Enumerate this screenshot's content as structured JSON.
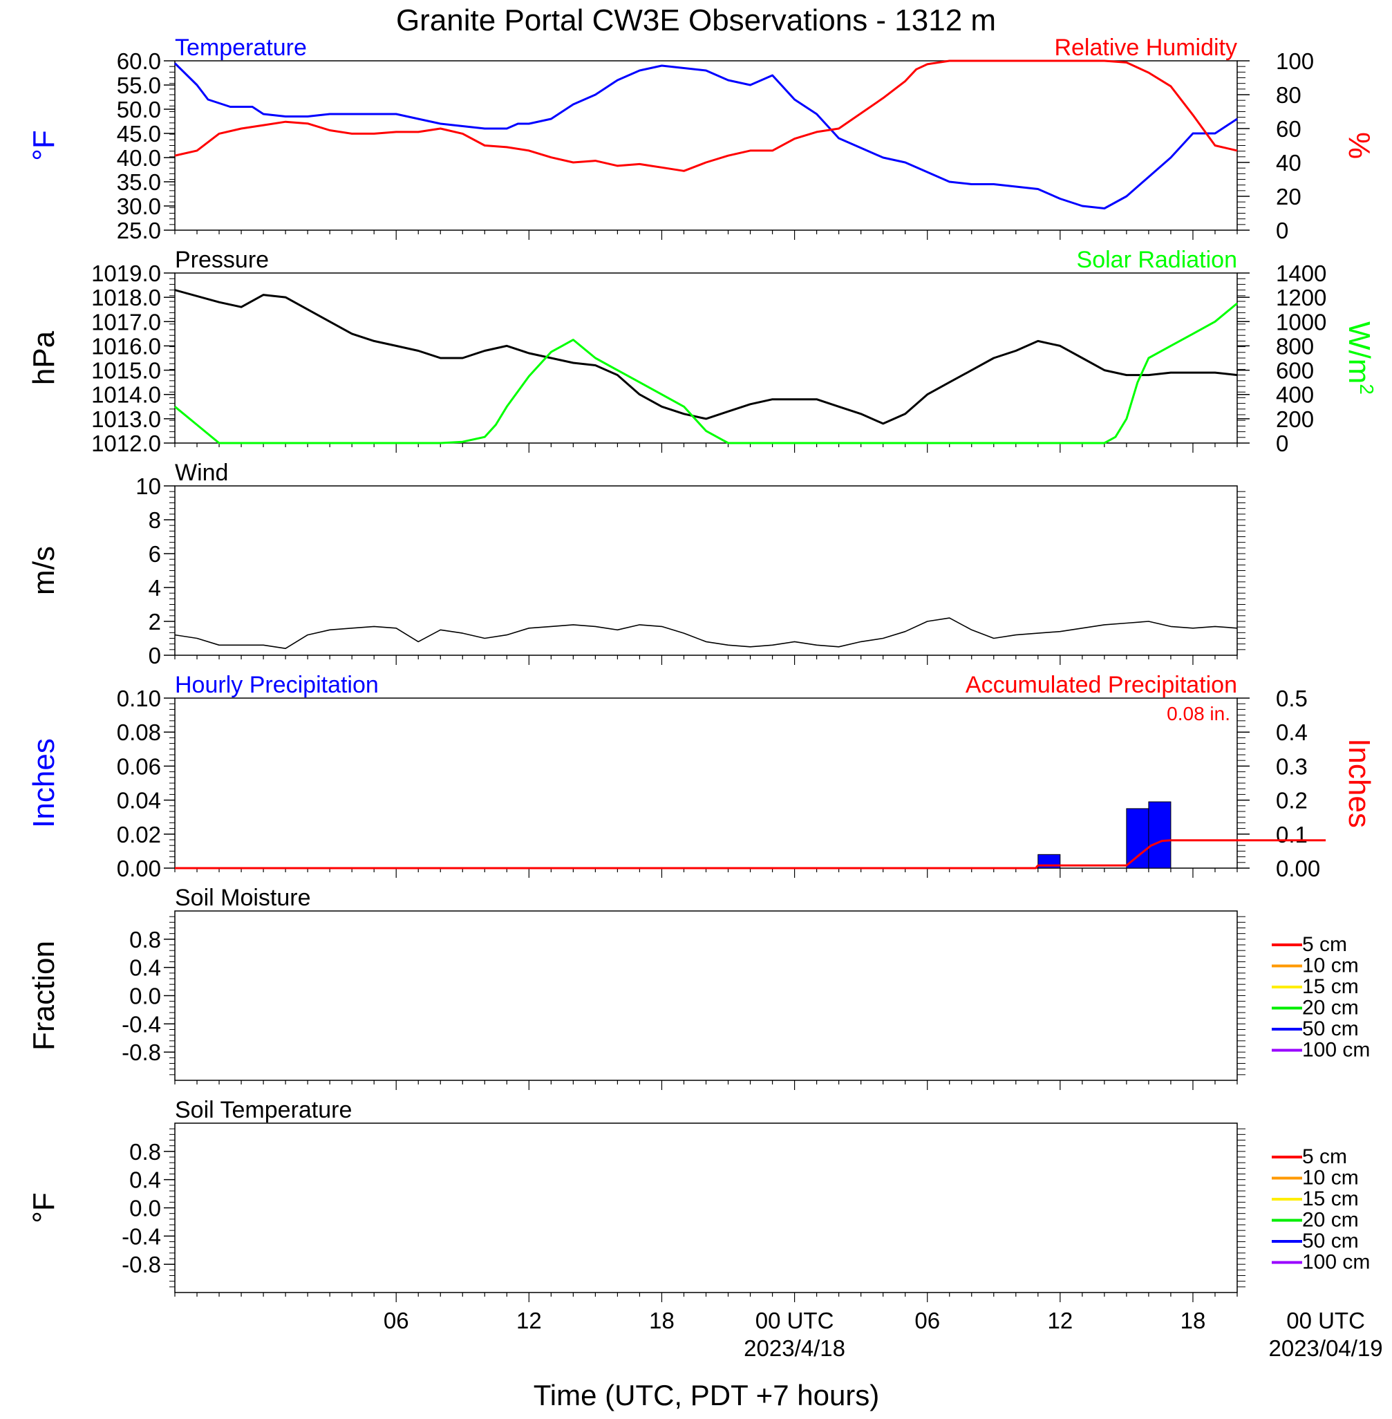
{
  "title": "Granite Portal CW3E Observations - 1312 m",
  "x_axis": {
    "label": "Time (UTC, PDT +7 hours)",
    "range_hours": [
      -5,
      43
    ],
    "ticks": [
      {
        "hour": 5,
        "label": "06"
      },
      {
        "hour": 11,
        "label": "12"
      },
      {
        "hour": 17,
        "label": "18"
      },
      {
        "hour": 23,
        "label": "00 UTC",
        "date": "2023/4/18"
      },
      {
        "hour": 29,
        "label": "06"
      },
      {
        "hour": 35,
        "label": "12"
      },
      {
        "hour": 41,
        "label": "18"
      },
      {
        "hour": 47,
        "label": "00 UTC",
        "date": "2023/04/19"
      }
    ]
  },
  "colors": {
    "temperature": "#0000ff",
    "humidity": "#ff0000",
    "pressure": "#000000",
    "solar": "#00ff00",
    "wind": "#000000",
    "wind_barb": "#ff0000",
    "hourly_precip": "#0000ff",
    "accum_precip": "#ff0000"
  },
  "chart_data": [
    {
      "type": "line",
      "panel": "temperature_humidity",
      "left_title": "Temperature",
      "right_title": "Relative Humidity",
      "ylabel_left": "°F",
      "ylabel_right": "%",
      "ylim_left": [
        25,
        60
      ],
      "ylim_right": [
        0,
        100
      ],
      "yticks_left": [
        "60.0",
        "55.0",
        "50.0",
        "45.0",
        "40.0",
        "35.0",
        "30.0",
        "25.0"
      ],
      "yticks_right": [
        "100",
        "80",
        "60",
        "40",
        "20",
        "0"
      ],
      "series": [
        {
          "name": "Temperature",
          "axis": "left",
          "x": [
            -5,
            -4,
            -3.5,
            -2.5,
            -1.5,
            -1,
            0,
            1,
            2,
            3,
            4,
            5,
            5.5,
            6,
            7,
            8,
            9,
            10,
            10.5,
            11,
            12,
            13,
            14,
            15,
            16,
            17,
            18,
            19,
            20,
            21,
            22,
            23,
            24,
            25,
            26,
            27,
            28,
            29,
            30,
            31,
            32,
            33,
            34,
            35,
            36,
            37,
            38,
            39,
            40,
            41,
            42,
            43
          ],
          "y": [
            59.5,
            55,
            52,
            50.5,
            50.5,
            49,
            48.5,
            48.5,
            49,
            49,
            49,
            49,
            48.5,
            48,
            47,
            46.5,
            46,
            46,
            47,
            47,
            48,
            51,
            53,
            56,
            58,
            59,
            58.5,
            58,
            56,
            55,
            57,
            52,
            49,
            44,
            42,
            40,
            39,
            37,
            35,
            34.5,
            34.5,
            34,
            33.5,
            31.5,
            30,
            29.5,
            32,
            36,
            40,
            45,
            45,
            48
          ]
        },
        {
          "name": "Relative Humidity",
          "axis": "right",
          "x": [
            -5,
            -4,
            -3,
            -2,
            -1,
            0,
            1,
            2,
            3,
            4,
            5,
            6,
            7,
            8,
            9,
            10,
            11,
            12,
            13,
            14,
            15,
            16,
            16.5,
            17,
            18,
            19,
            20,
            21,
            22,
            23,
            24,
            25,
            26,
            27,
            28,
            28.5,
            29,
            30,
            31,
            32,
            33,
            34,
            35,
            36,
            37,
            38,
            39,
            40,
            41,
            42,
            43
          ],
          "y": [
            44,
            47,
            57,
            60,
            62,
            64,
            63,
            59,
            57,
            57,
            58,
            58,
            60,
            57,
            50,
            49,
            47,
            43,
            40,
            41,
            38,
            39,
            38,
            37,
            35,
            40,
            44,
            47,
            47,
            54,
            58,
            60,
            69,
            78,
            88,
            95,
            98,
            100,
            100,
            100,
            100,
            100,
            100,
            100,
            100,
            99,
            93,
            85,
            68,
            50,
            47
          ]
        }
      ]
    },
    {
      "type": "line",
      "panel": "pressure_solar",
      "left_title": "Pressure",
      "right_title": "Solar Radiation",
      "ylabel_left": "hPa",
      "ylabel_right": "W/m",
      "ylabel_right_sup": "2",
      "ylim_left": [
        1012,
        1019
      ],
      "ylim_right": [
        0,
        1400
      ],
      "yticks_left": [
        "1019.0",
        "1018.0",
        "1017.0",
        "1016.0",
        "1015.0",
        "1014.0",
        "1013.0",
        "1012.0"
      ],
      "yticks_right": [
        "1400",
        "1200",
        "1000",
        "800",
        "600",
        "400",
        "200",
        "0"
      ],
      "series": [
        {
          "name": "Pressure",
          "axis": "left",
          "x": [
            -5,
            -3,
            -2,
            -1,
            0,
            1,
            2,
            3,
            4,
            5,
            6,
            7,
            8,
            9,
            10,
            11,
            12,
            13,
            14,
            15,
            16,
            17,
            18,
            19,
            20,
            21,
            22,
            23,
            24,
            25,
            26,
            27,
            28,
            29,
            30,
            31,
            32,
            33,
            34,
            35,
            36,
            37,
            38,
            39,
            40,
            41,
            42,
            43
          ],
          "y": [
            1018.3,
            1017.8,
            1017.6,
            1018.1,
            1018.0,
            1017.5,
            1017.0,
            1016.5,
            1016.2,
            1016.0,
            1015.8,
            1015.5,
            1015.5,
            1015.8,
            1016.0,
            1015.7,
            1015.5,
            1015.3,
            1015.2,
            1014.8,
            1014.0,
            1013.5,
            1013.2,
            1013.0,
            1013.3,
            1013.6,
            1013.8,
            1013.8,
            1013.8,
            1013.5,
            1013.2,
            1012.8,
            1013.2,
            1014.0,
            1014.5,
            1015.0,
            1015.5,
            1015.8,
            1016.2,
            1016.0,
            1015.5,
            1015.0,
            1014.8,
            1014.8,
            1014.9,
            1014.9,
            1014.9,
            1014.8
          ]
        },
        {
          "name": "Solar Radiation",
          "axis": "right",
          "x": [
            -5,
            -4,
            -3,
            -2,
            0,
            2,
            4,
            6,
            7,
            8,
            9,
            9.5,
            10,
            11,
            12,
            12.5,
            13,
            14,
            15,
            16,
            17,
            18,
            19,
            20,
            21,
            22,
            23,
            24,
            25,
            26,
            28,
            30,
            32,
            34,
            36,
            37,
            37.5,
            38,
            38.5,
            39,
            40,
            41,
            42,
            43
          ],
          "y": [
            300,
            150,
            0,
            0,
            0,
            0,
            0,
            0,
            0,
            10,
            50,
            150,
            300,
            550,
            750,
            800,
            850,
            700,
            600,
            500,
            400,
            300,
            100,
            0,
            0,
            0,
            0,
            0,
            0,
            0,
            0,
            0,
            0,
            0,
            0,
            0,
            50,
            200,
            500,
            700,
            800,
            900,
            1000,
            1150
          ]
        }
      ]
    },
    {
      "type": "line",
      "panel": "wind",
      "left_title": "Wind",
      "ylabel_left": "m/s",
      "ylim_left": [
        0,
        10
      ],
      "yticks_left": [
        "10",
        "8",
        "6",
        "4",
        "2",
        "0"
      ],
      "series": [
        {
          "name": "Wind",
          "axis": "left",
          "x": [
            -5,
            -4,
            -3,
            -2,
            -1,
            0,
            1,
            2,
            3,
            4,
            5,
            6,
            7,
            8,
            9,
            10,
            11,
            12,
            13,
            14,
            15,
            16,
            17,
            18,
            19,
            20,
            21,
            22,
            23,
            24,
            25,
            26,
            27,
            28,
            29,
            30,
            31,
            32,
            33,
            34,
            35,
            36,
            37,
            38,
            39,
            40,
            41,
            42,
            43
          ],
          "y": [
            1.2,
            1.0,
            0.6,
            0.6,
            0.6,
            0.4,
            1.2,
            1.5,
            1.6,
            1.7,
            1.6,
            0.8,
            1.5,
            1.3,
            1.0,
            1.2,
            1.6,
            1.7,
            1.8,
            1.7,
            1.5,
            1.8,
            1.7,
            1.3,
            0.8,
            0.6,
            0.5,
            0.6,
            0.8,
            0.6,
            0.5,
            0.8,
            1.0,
            1.4,
            2.0,
            2.2,
            1.5,
            1.0,
            1.2,
            1.3,
            1.4,
            1.6,
            1.8,
            1.9,
            2.0,
            1.7,
            1.6,
            1.7,
            1.6
          ]
        }
      ]
    },
    {
      "type": "bar",
      "panel": "precipitation",
      "left_title": "Hourly Precipitation",
      "right_title": "Accumulated Precipitation",
      "total_label": "0.08 in.",
      "ylabel_left": "Inches",
      "ylabel_right": "Inches",
      "ylim_left": [
        0,
        0.1
      ],
      "ylim_right": [
        0,
        0.5
      ],
      "yticks_left": [
        "0.10",
        "0.08",
        "0.06",
        "0.04",
        "0.02",
        "0.00"
      ],
      "yticks_right": [
        "0.5",
        "0.4",
        "0.3",
        "0.2",
        "0.1",
        "0.00"
      ],
      "bars": [
        {
          "name": "Hourly Precipitation",
          "axis": "left",
          "hour": [
            34,
            38,
            39
          ],
          "values": [
            0.008,
            0.035,
            0.039
          ]
        }
      ],
      "series": [
        {
          "name": "Accumulated Precipitation",
          "axis": "right",
          "x": [
            -5,
            33.9,
            34,
            38,
            38.6,
            39.1,
            39.6,
            40,
            47
          ],
          "y": [
            0,
            0,
            0.008,
            0.008,
            0.04,
            0.066,
            0.08,
            0.082,
            0.082
          ]
        }
      ]
    },
    {
      "type": "line",
      "panel": "soil_moisture",
      "left_title": "Soil Moisture",
      "ylabel_left": "Fraction",
      "ylim_left": [
        -1.2,
        1.2
      ],
      "yticks_left": [
        "0.8",
        "0.4",
        "0.0",
        "-0.4",
        "-0.8"
      ],
      "legend": [
        "5 cm",
        "10 cm",
        "15 cm",
        "20 cm",
        "50 cm",
        "100 cm"
      ],
      "legend_colors": [
        "#ff0000",
        "#ff9900",
        "#ffee00",
        "#00ee00",
        "#0000ff",
        "#9900ff"
      ],
      "series": []
    },
    {
      "type": "line",
      "panel": "soil_temperature",
      "left_title": "Soil Temperature",
      "ylabel_left": "°F",
      "ylim_left": [
        -1.2,
        1.2
      ],
      "yticks_left": [
        "0.8",
        "0.4",
        "0.0",
        "-0.4",
        "-0.8"
      ],
      "legend": [
        "5 cm",
        "10 cm",
        "15 cm",
        "20 cm",
        "50 cm",
        "100 cm"
      ],
      "legend_colors": [
        "#ff0000",
        "#ff9900",
        "#ffee00",
        "#00ee00",
        "#0000ff",
        "#9900ff"
      ],
      "series": []
    }
  ]
}
